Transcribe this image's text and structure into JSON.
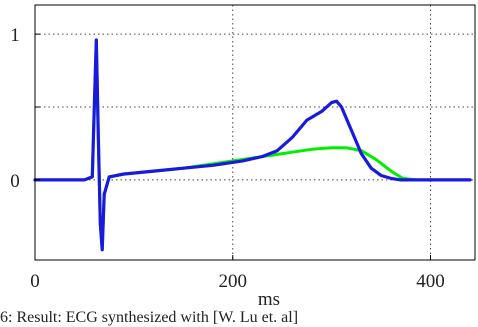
{
  "chart_data": {
    "type": "line",
    "title": "",
    "xlabel": "ms",
    "ylabel": "",
    "xlim": [
      0,
      445
    ],
    "ylim": [
      -0.55,
      1.2
    ],
    "x_ticks": [
      0,
      200,
      400
    ],
    "x_tick_labels": [
      "0",
      "200",
      "400"
    ],
    "y_ticks": [
      0,
      0.5,
      1
    ],
    "y_tick_labels": [
      "0",
      "",
      "1"
    ],
    "grid": true,
    "grid_style": "dotted",
    "series": [
      {
        "color": "#00ee00",
        "x": [
          0,
          50,
          58,
          60,
          62,
          64,
          66,
          68,
          70,
          75,
          90,
          120,
          150,
          180,
          210,
          240,
          260,
          280,
          300,
          315,
          330,
          345,
          360,
          372,
          385,
          400,
          420,
          440
        ],
        "y": [
          0,
          0,
          0.02,
          0.5,
          0.96,
          0.3,
          -0.3,
          -0.48,
          -0.1,
          0.02,
          0.04,
          0.06,
          0.08,
          0.11,
          0.14,
          0.17,
          0.19,
          0.21,
          0.22,
          0.22,
          0.2,
          0.14,
          0.06,
          0.01,
          0.0,
          0.0,
          0.0,
          0.0
        ]
      },
      {
        "color": "#1a1adf",
        "x": [
          0,
          50,
          58,
          60,
          62,
          64,
          66,
          68,
          70,
          75,
          90,
          120,
          150,
          180,
          210,
          230,
          245,
          260,
          275,
          290,
          300,
          305,
          310,
          320,
          330,
          340,
          350,
          360,
          370,
          380,
          400,
          420,
          440
        ],
        "y": [
          0,
          0,
          0.02,
          0.5,
          0.96,
          0.3,
          -0.3,
          -0.48,
          -0.1,
          0.02,
          0.04,
          0.06,
          0.08,
          0.1,
          0.13,
          0.16,
          0.2,
          0.29,
          0.41,
          0.47,
          0.53,
          0.54,
          0.5,
          0.34,
          0.18,
          0.08,
          0.03,
          0.01,
          0.0,
          0.0,
          0.0,
          0.0,
          0.0
        ]
      }
    ]
  },
  "caption": "6: Result: ECG synthesized with [W. Lu et. al]"
}
